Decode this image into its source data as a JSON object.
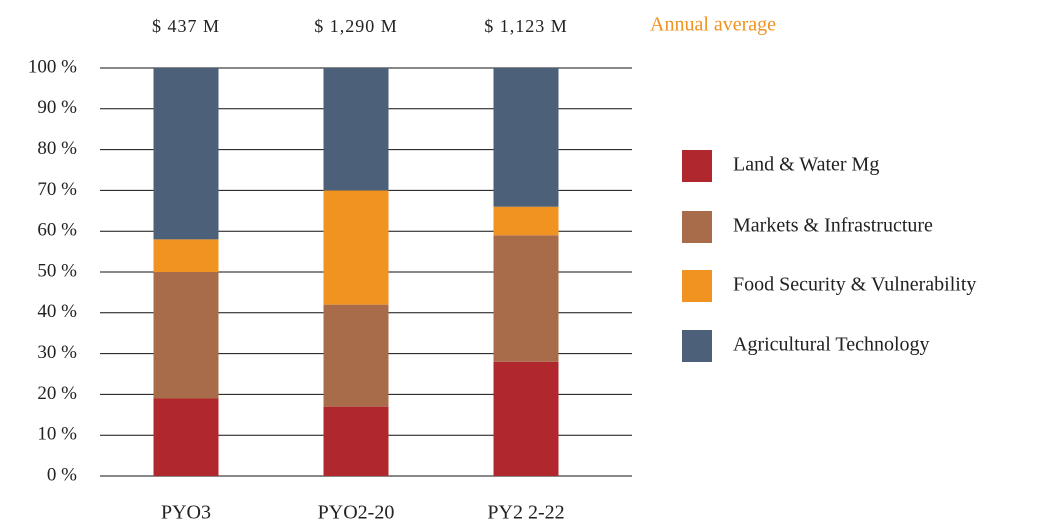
{
  "chart_data": {
    "type": "stacked_bar",
    "categories": [
      "PYO3",
      "PYO2-20",
      "PY2 2-22"
    ],
    "annotations": [
      "$ 437 M",
      "$ 1,290 M",
      "$ 1,123 M",
      "Annual average"
    ],
    "series": [
      {
        "name": "Land & Water Mg",
        "color": "#b0272d",
        "values": [
          19,
          17,
          28
        ]
      },
      {
        "name": "Markets & Infrastructure",
        "color": "#a86c4a",
        "values": [
          31,
          25,
          31
        ]
      },
      {
        "name": "Food Security & Vulnerability",
        "color": "#f09321",
        "values": [
          8,
          28,
          7
        ]
      },
      {
        "name": "Agricultural Technology",
        "color": "#4d6079",
        "values": [
          42,
          30,
          34
        ]
      }
    ],
    "ylim": [
      0,
      100
    ],
    "yticks": [
      {
        "value": 0,
        "label": "0 %"
      },
      {
        "value": 10,
        "label": "10 %"
      },
      {
        "value": 20,
        "label": "20 %"
      },
      {
        "value": 30,
        "label": "30 %"
      },
      {
        "value": 40,
        "label": "40 %"
      },
      {
        "value": 50,
        "label": "50 %"
      },
      {
        "value": 60,
        "label": "60 %"
      },
      {
        "value": 70,
        "label": "70 %"
      },
      {
        "value": 80,
        "label": "80 %"
      },
      {
        "value": 90,
        "label": "90 %"
      },
      {
        "value": 100,
        "label": "100 %"
      }
    ],
    "grid": true,
    "legend": "right"
  }
}
